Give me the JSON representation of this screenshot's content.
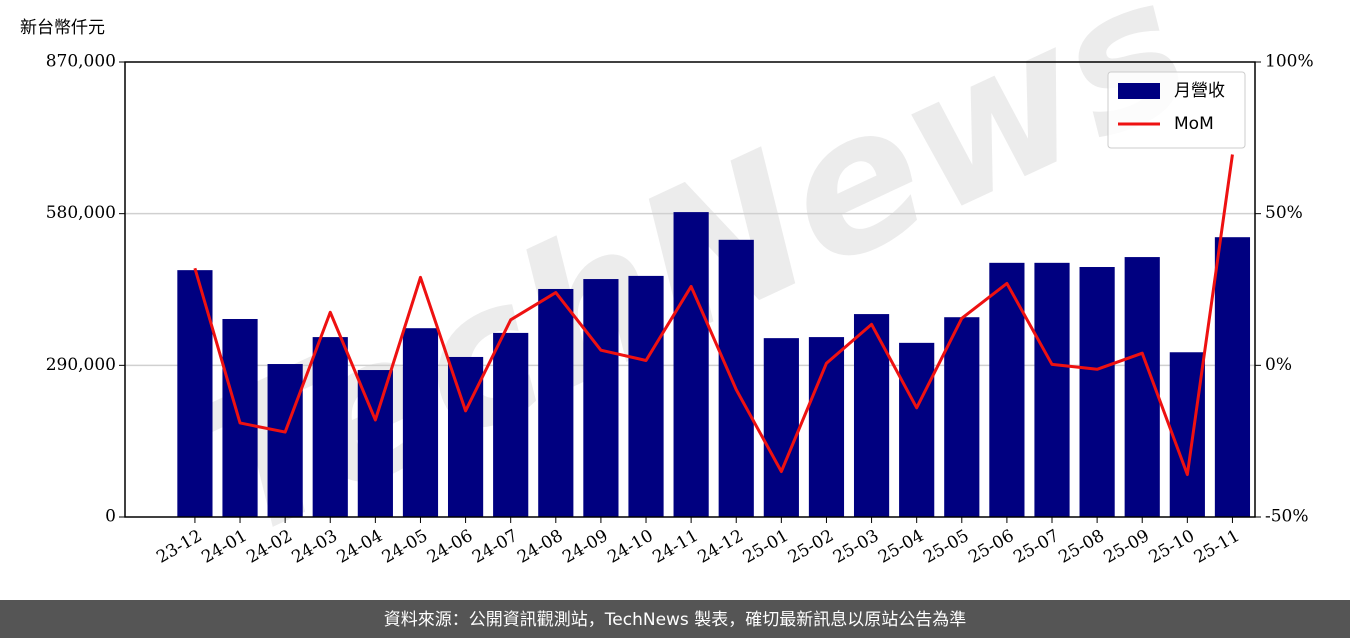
{
  "chart_data": {
    "type": "bar",
    "y_label": "新台幣仟元",
    "watermark": "TechNews",
    "footer": "資料來源：公開資訊觀測站，TechNews 製表，確切最新訊息以原站公告為準",
    "categories": [
      "23-12",
      "24-01",
      "24-02",
      "24-03",
      "24-04",
      "24-05",
      "24-06",
      "24-07",
      "24-08",
      "24-09",
      "24-10",
      "24-11",
      "24-12",
      "25-01",
      "25-02",
      "25-03",
      "25-04",
      "25-05",
      "25-06",
      "25-07",
      "25-08",
      "25-09",
      "25-10",
      "25-11"
    ],
    "series": [
      {
        "name": "月營收",
        "type": "bar",
        "color": "#000080",
        "values": [
          472000,
          378600,
          292500,
          344000,
          281000,
          361000,
          306000,
          352000,
          436000,
          455000,
          461000,
          583000,
          530000,
          342000,
          344000,
          388000,
          333000,
          382000,
          486000,
          486000,
          478000,
          497000,
          315000,
          535000
        ]
      },
      {
        "name": "MoM",
        "type": "line",
        "axis": "y2",
        "color": "#ee1111",
        "values": [
          32,
          -19,
          -22,
          17.5,
          -18,
          29,
          -15,
          15,
          24,
          5,
          1.6,
          26,
          -8,
          -35,
          0.7,
          13.5,
          -14,
          15.5,
          27,
          0.3,
          -1.3,
          4,
          -36,
          69.5
        ]
      }
    ],
    "ylim": [
      0,
      870000
    ],
    "yticks": [
      0,
      {
        "value": 290000,
        "label": "290,000"
      },
      {
        "value": 580000,
        "label": "580,000"
      },
      {
        "value": 870000,
        "label": "870,000"
      }
    ],
    "y2lim": [
      -50,
      100
    ],
    "y2ticks": [
      {
        "value": -50,
        "label": "-50%"
      },
      {
        "value": 0,
        "label": "0%"
      },
      {
        "value": 50,
        "label": "50%"
      },
      {
        "value": 100,
        "label": "100%"
      }
    ],
    "grid": true,
    "legend": "upper right"
  }
}
